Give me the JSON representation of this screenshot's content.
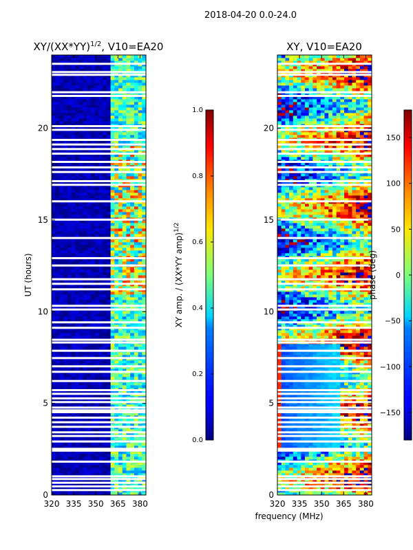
{
  "suptitle": "2018-04-20 0.0-24.0",
  "xlabel_shared": "frequency (MHz)",
  "chart_data": [
    {
      "type": "heatmap",
      "title": "XY/(XX*YY)",
      "title_sup": "1/2",
      "title_suffix": ", V10=EA20",
      "xlabel": "frequency (MHz)",
      "ylabel": "UT (hours)",
      "xlim": [
        320,
        384
      ],
      "ylim": [
        0,
        24
      ],
      "xticks": [
        320,
        335,
        350,
        365,
        380
      ],
      "yticks": [
        0,
        5,
        10,
        15,
        20
      ],
      "background_value_range": [
        0.0,
        0.1
      ],
      "band_value_range": [
        0.25,
        0.85
      ],
      "band_freq_range": [
        361,
        384
      ],
      "colorbar": {
        "label": "XY amp. / (XX*YY amp)",
        "label_sup": "1/2",
        "range": [
          0.0,
          1.0
        ],
        "ticks": [
          "0.0",
          "0.2",
          "0.4",
          "0.6",
          "0.8",
          "1.0"
        ],
        "colormap": "jet"
      },
      "gaps_hours": [
        0.25,
        0.45,
        0.65,
        0.85,
        1.0,
        1.8,
        2.4,
        2.5,
        2.9,
        3.2,
        3.4,
        3.7,
        3.95,
        4.2,
        4.5,
        4.6,
        4.75,
        5.05,
        5.25,
        5.5,
        5.7,
        6.2,
        6.7,
        7.0,
        7.45,
        7.85,
        8.3,
        8.45,
        9.1,
        9.4,
        10.1,
        10.3,
        11.2,
        11.5,
        11.75,
        12.5,
        12.9,
        14.0,
        15.0,
        16.0,
        16.9,
        17.1,
        17.6,
        17.85,
        18.15,
        18.6,
        18.85,
        19.1,
        19.35,
        19.9,
        20.1,
        21.75,
        21.95,
        22.9,
        23.05,
        23.5
      ]
    },
    {
      "type": "heatmap",
      "title": "XY, V10=EA20",
      "xlim": [
        320,
        384
      ],
      "ylim": [
        0,
        24
      ],
      "xticks": [
        320,
        335,
        350,
        365,
        380
      ],
      "yticks": [
        0,
        5,
        10,
        15,
        20
      ],
      "value_range": [
        -180,
        180
      ],
      "colorbar": {
        "label": "phase (deg)",
        "range": [
          -180,
          180
        ],
        "ticks": [
          "−150",
          "−100",
          "−50",
          "0",
          "50",
          "100",
          "150"
        ],
        "tick_values": [
          -150,
          -100,
          -50,
          0,
          50,
          100,
          150
        ],
        "colormap": "jet"
      },
      "gaps_hours": [
        0.25,
        0.45,
        0.65,
        0.85,
        1.0,
        1.8,
        2.4,
        2.5,
        2.9,
        3.2,
        3.4,
        3.7,
        3.95,
        4.2,
        4.5,
        4.6,
        4.75,
        5.05,
        5.25,
        5.5,
        5.7,
        6.2,
        6.7,
        7.0,
        7.45,
        7.85,
        8.3,
        8.45,
        9.1,
        9.4,
        10.1,
        10.3,
        11.2,
        11.5,
        11.75,
        12.5,
        12.9,
        14.0,
        15.0,
        16.0,
        16.9,
        17.1,
        17.6,
        17.85,
        18.15,
        18.6,
        18.85,
        19.1,
        19.35,
        19.9,
        20.1,
        21.75,
        21.95,
        22.9,
        23.05,
        23.5
      ]
    }
  ]
}
